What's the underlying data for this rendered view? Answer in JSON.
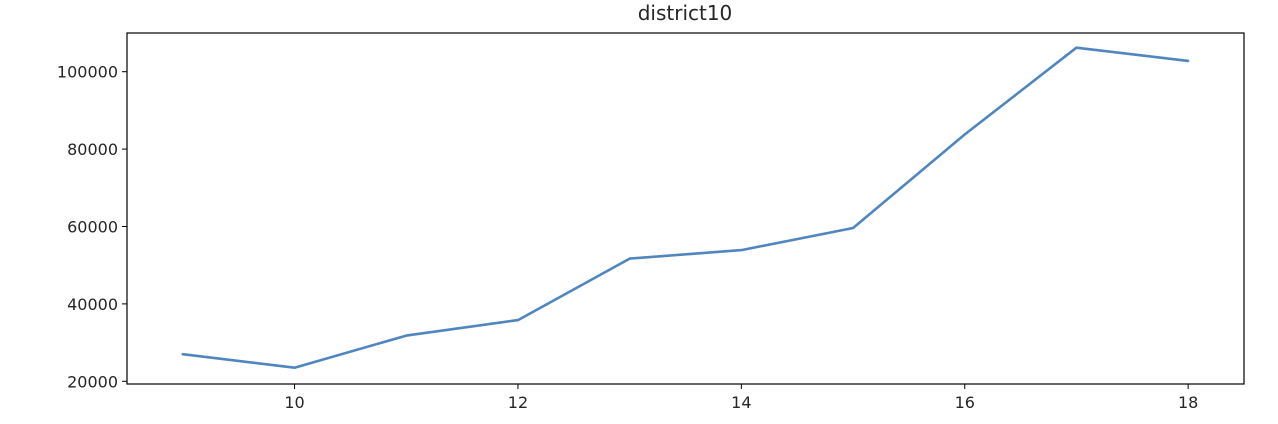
{
  "chart_data": {
    "type": "line",
    "title": "district10",
    "xlabel": "",
    "ylabel": "",
    "xlim": [
      8.5,
      18.5
    ],
    "ylim": [
      19300,
      110000
    ],
    "xticks": [
      10,
      12,
      14,
      16,
      18
    ],
    "yticks": [
      20000,
      40000,
      60000,
      80000,
      100000
    ],
    "grid": false,
    "series": [
      {
        "color": "#4f86bf",
        "x": [
          9,
          10,
          11,
          12,
          13,
          14,
          15,
          16,
          17,
          18
        ],
        "y": [
          27000,
          23500,
          31800,
          35800,
          51700,
          53900,
          59600,
          83800,
          106200,
          102800
        ]
      }
    ]
  }
}
